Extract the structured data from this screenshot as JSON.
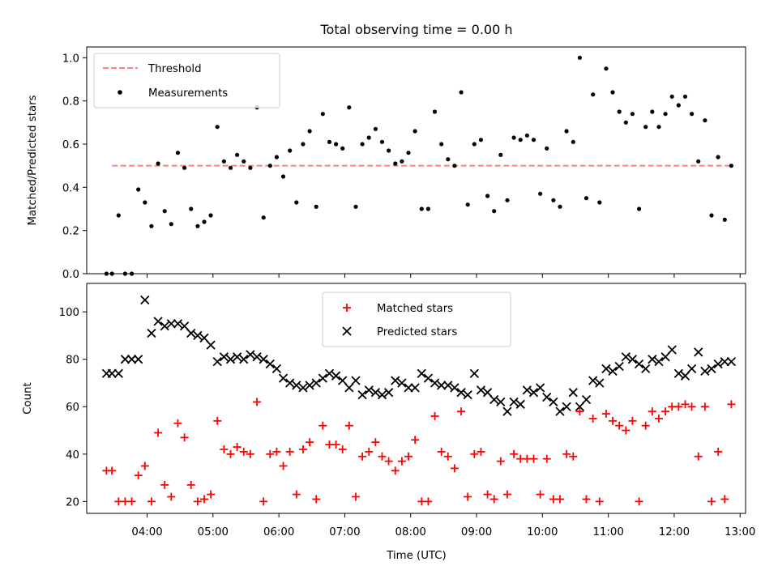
{
  "chart_data": [
    {
      "type": "scatter",
      "title": "Total observing time = 0.00 h",
      "xlabel": "",
      "ylabel": "Matched/Predicted stars",
      "xlim_minutes": [
        185,
        785
      ],
      "ylim": [
        0,
        1.05
      ],
      "yticks": [
        0.0,
        0.2,
        0.4,
        0.6,
        0.8,
        1.0
      ],
      "ytick_labels": [
        "0.0",
        "0.2",
        "0.4",
        "0.6",
        "0.8",
        "1.0"
      ],
      "grid": false,
      "legend_position": "top-left",
      "series": [
        {
          "name": "Threshold",
          "kind": "dashed-line",
          "color": "#ff7f7f",
          "x": [
            208,
            771
          ],
          "y": [
            0.5,
            0.5
          ]
        },
        {
          "name": "Measurements",
          "kind": "points",
          "color": "#000000",
          "x": [
            203,
            208,
            214,
            220,
            226,
            232,
            238,
            244,
            250,
            256,
            262,
            268,
            274,
            280,
            286,
            292,
            298,
            304,
            310,
            316,
            322,
            328,
            334,
            340,
            346,
            352,
            358,
            364,
            370,
            376,
            382,
            388,
            394,
            400,
            406,
            412,
            418,
            424,
            430,
            436,
            442,
            448,
            454,
            460,
            466,
            472,
            478,
            484,
            490,
            496,
            502,
            508,
            514,
            520,
            526,
            532,
            538,
            544,
            550,
            556,
            562,
            568,
            574,
            580,
            586,
            592,
            598,
            604,
            610,
            616,
            622,
            628,
            634,
            640,
            646,
            652,
            658,
            664,
            670,
            676,
            682,
            688,
            694,
            700,
            706,
            712,
            718,
            724,
            730,
            736,
            742,
            748,
            754,
            760,
            766,
            772
          ],
          "y": [
            0.0,
            0.0,
            0.27,
            0.0,
            0.0,
            0.39,
            0.33,
            0.22,
            0.51,
            0.29,
            0.23,
            0.56,
            0.49,
            0.3,
            0.22,
            0.24,
            0.27,
            0.68,
            0.52,
            0.49,
            0.55,
            0.52,
            0.49,
            0.77,
            0.26,
            0.5,
            0.54,
            0.45,
            0.57,
            0.33,
            0.6,
            0.66,
            0.31,
            0.74,
            0.61,
            0.6,
            0.58,
            0.77,
            0.31,
            0.6,
            0.63,
            0.67,
            0.61,
            0.57,
            0.51,
            0.52,
            0.56,
            0.66,
            0.3,
            0.3,
            0.75,
            0.6,
            0.53,
            0.5,
            0.84,
            0.32,
            0.6,
            0.62,
            0.36,
            0.29,
            0.55,
            0.34,
            0.63,
            0.62,
            0.64,
            0.62,
            0.37,
            0.58,
            0.34,
            0.31,
            0.66,
            0.61,
            1.0,
            0.35,
            0.83,
            0.33,
            0.95,
            0.84,
            0.75,
            0.7,
            0.74,
            0.3,
            0.68,
            0.75,
            0.68,
            0.74,
            0.82,
            0.78,
            0.82,
            0.74,
            0.52,
            0.71,
            0.27,
            0.54,
            0.25,
            0.5
          ]
        }
      ]
    },
    {
      "type": "scatter",
      "title": "",
      "xlabel": "Time (UTC)",
      "ylabel": "Count",
      "xlim_minutes": [
        185,
        785
      ],
      "ylim": [
        15,
        112
      ],
      "yticks": [
        20,
        40,
        60,
        80,
        100
      ],
      "ytick_labels": [
        "20",
        "40",
        "60",
        "80",
        "100"
      ],
      "xticks_minutes": [
        240,
        300,
        360,
        420,
        480,
        540,
        600,
        660,
        720,
        780
      ],
      "xtick_labels": [
        "04:00",
        "05:00",
        "06:00",
        "07:00",
        "08:00",
        "09:00",
        "10:00",
        "11:00",
        "12:00",
        "13:00"
      ],
      "grid": false,
      "legend_position": "top-center",
      "series": [
        {
          "name": "Matched stars",
          "marker": "plus",
          "color": "#ff0000",
          "x": [
            203,
            208,
            214,
            220,
            226,
            232,
            238,
            244,
            250,
            256,
            262,
            268,
            274,
            280,
            286,
            292,
            298,
            304,
            310,
            316,
            322,
            328,
            334,
            340,
            346,
            352,
            358,
            364,
            370,
            376,
            382,
            388,
            394,
            400,
            406,
            412,
            418,
            424,
            430,
            436,
            442,
            448,
            454,
            460,
            466,
            472,
            478,
            484,
            490,
            496,
            502,
            508,
            514,
            520,
            526,
            532,
            538,
            544,
            550,
            556,
            562,
            568,
            574,
            580,
            586,
            592,
            598,
            604,
            610,
            616,
            622,
            628,
            634,
            640,
            646,
            652,
            658,
            664,
            670,
            676,
            682,
            688,
            694,
            700,
            706,
            712,
            718,
            724,
            730,
            736,
            742,
            748,
            754,
            760,
            766,
            772
          ],
          "y": [
            33,
            33,
            20,
            20,
            20,
            31,
            35,
            20,
            49,
            27,
            22,
            53,
            47,
            27,
            20,
            21,
            23,
            54,
            42,
            40,
            43,
            41,
            40,
            62,
            20,
            40,
            41,
            35,
            41,
            23,
            42,
            45,
            21,
            52,
            44,
            44,
            42,
            52,
            22,
            39,
            41,
            45,
            39,
            37,
            33,
            37,
            39,
            46,
            20,
            20,
            56,
            41,
            39,
            34,
            58,
            22,
            40,
            41,
            23,
            21,
            37,
            23,
            40,
            38,
            38,
            38,
            23,
            38,
            21,
            21,
            40,
            39,
            58,
            21,
            55,
            20,
            57,
            54,
            52,
            50,
            54,
            20,
            52,
            58,
            55,
            58,
            60,
            60,
            61,
            60,
            39,
            60,
            20,
            41,
            21,
            61
          ]
        },
        {
          "name": "Predicted stars",
          "marker": "x",
          "color": "#000000",
          "x": [
            203,
            208,
            214,
            220,
            226,
            232,
            238,
            244,
            250,
            256,
            262,
            268,
            274,
            280,
            286,
            292,
            298,
            304,
            310,
            316,
            322,
            328,
            334,
            340,
            346,
            352,
            358,
            364,
            370,
            376,
            382,
            388,
            394,
            400,
            406,
            412,
            418,
            424,
            430,
            436,
            442,
            448,
            454,
            460,
            466,
            472,
            478,
            484,
            490,
            496,
            502,
            508,
            514,
            520,
            526,
            532,
            538,
            544,
            550,
            556,
            562,
            568,
            574,
            580,
            586,
            592,
            598,
            604,
            610,
            616,
            622,
            628,
            634,
            640,
            646,
            652,
            658,
            664,
            670,
            676,
            682,
            688,
            694,
            700,
            706,
            712,
            718,
            724,
            730,
            736,
            742,
            748,
            754,
            760,
            766,
            772
          ],
          "y": [
            74,
            74,
            74,
            80,
            80,
            80,
            105,
            91,
            96,
            94,
            95,
            95,
            94,
            91,
            90,
            89,
            86,
            79,
            81,
            80,
            81,
            80,
            82,
            81,
            80,
            78,
            76,
            72,
            70,
            69,
            68,
            69,
            70,
            72,
            74,
            73,
            71,
            68,
            71,
            65,
            67,
            66,
            65,
            66,
            71,
            70,
            68,
            68,
            74,
            72,
            70,
            69,
            69,
            68,
            66,
            65,
            74,
            67,
            66,
            63,
            62,
            58,
            62,
            61,
            67,
            66,
            68,
            64,
            62,
            58,
            60,
            66,
            60,
            63,
            71,
            70,
            76,
            75,
            77,
            81,
            80,
            78,
            76,
            80,
            79,
            81,
            84,
            74,
            73,
            76,
            83,
            75,
            76,
            78,
            79,
            79
          ]
        }
      ]
    }
  ]
}
